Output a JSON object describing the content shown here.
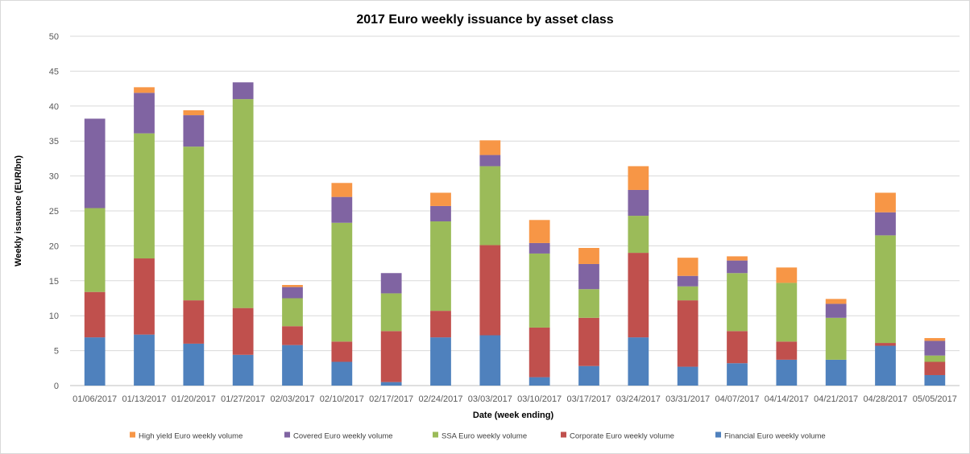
{
  "chart_data": {
    "type": "bar",
    "stacked": true,
    "title": "2017 Euro weekly issuance by asset class",
    "xlabel": "Date (week ending)",
    "ylabel": "Weekly issuance  (EUR/bn)",
    "ylim": [
      0,
      50
    ],
    "yticks": [
      0,
      5,
      10,
      15,
      20,
      25,
      30,
      35,
      40,
      45,
      50
    ],
    "grid": true,
    "legend_position": "bottom",
    "categories": [
      "01/06/2017",
      "01/13/2017",
      "01/20/2017",
      "01/27/2017",
      "02/03/2017",
      "02/10/2017",
      "02/17/2017",
      "02/24/2017",
      "03/03/2017",
      "03/10/2017",
      "03/17/2017",
      "03/24/2017",
      "03/31/2017",
      "04/07/2017",
      "04/14/2017",
      "04/21/2017",
      "04/28/2017",
      "05/05/2017"
    ],
    "series": [
      {
        "name": "Financial Euro weekly volume",
        "color": "#4F81BD",
        "values": [
          6.9,
          7.3,
          6.0,
          4.4,
          5.8,
          3.4,
          0.5,
          6.9,
          7.2,
          1.2,
          2.8,
          6.9,
          2.7,
          3.2,
          3.7,
          3.7,
          5.7,
          1.5
        ]
      },
      {
        "name": "Corporate Euro weekly volume",
        "color": "#C0504D",
        "values": [
          6.5,
          10.9,
          6.2,
          6.7,
          2.7,
          2.9,
          7.3,
          3.8,
          12.9,
          7.1,
          6.9,
          12.1,
          9.5,
          4.6,
          2.6,
          0.0,
          0.4,
          1.9
        ]
      },
      {
        "name": "SSA Euro weekly volume",
        "color": "#9BBB59",
        "values": [
          12.0,
          17.9,
          22.0,
          29.9,
          4.0,
          17.0,
          5.4,
          12.8,
          11.3,
          10.6,
          4.1,
          5.3,
          2.0,
          8.3,
          8.4,
          6.0,
          15.4,
          0.9
        ]
      },
      {
        "name": "Covered Euro weekly volume",
        "color": "#8064A2",
        "values": [
          12.8,
          5.8,
          4.5,
          2.4,
          1.6,
          3.7,
          2.9,
          2.2,
          1.6,
          1.5,
          3.6,
          3.7,
          1.5,
          1.8,
          0.0,
          2.0,
          3.3,
          2.1
        ]
      },
      {
        "name": "High yield Euro weekly volume",
        "color": "#F79646",
        "values": [
          0.0,
          0.8,
          0.7,
          0.0,
          0.3,
          2.0,
          0.0,
          1.9,
          2.1,
          3.3,
          2.3,
          3.4,
          2.6,
          0.6,
          2.2,
          0.7,
          2.8,
          0.4
        ]
      }
    ],
    "legend_order": [
      4,
      3,
      2,
      1,
      0
    ]
  }
}
